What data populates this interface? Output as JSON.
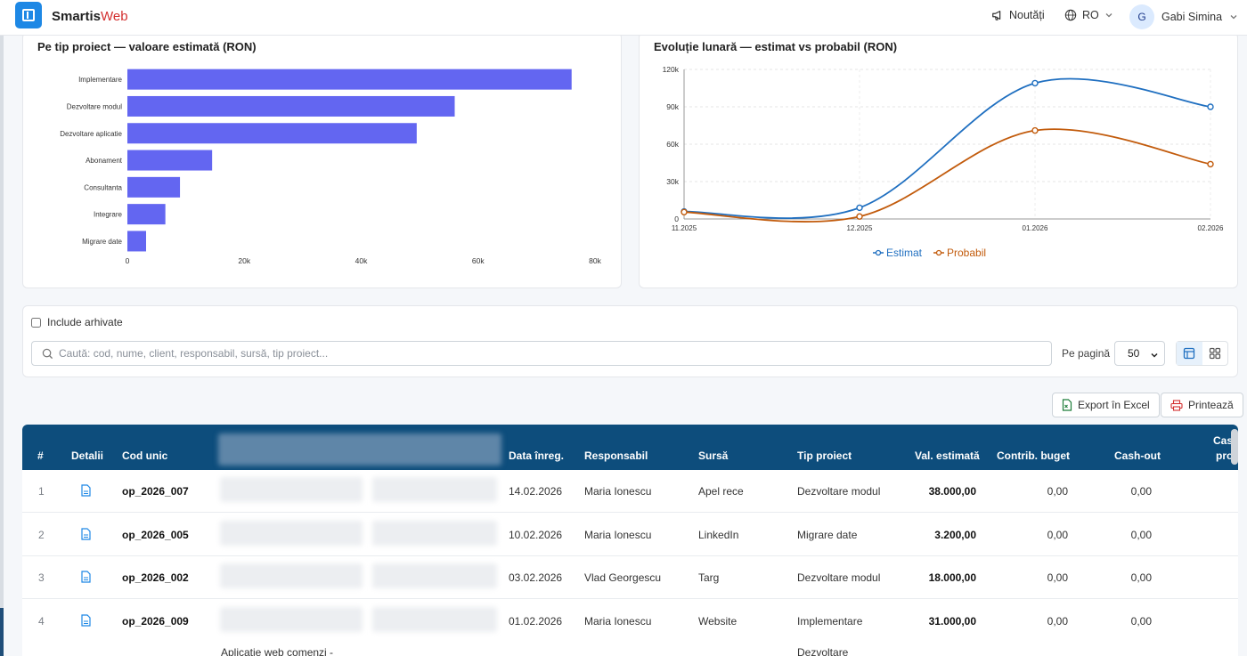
{
  "header": {
    "brand_main": "Smartis",
    "brand_accent": "Web",
    "news": "Noutăți",
    "lang": "RO",
    "user_initial": "G",
    "user_name": "Gabi Simina"
  },
  "bar_chart": {
    "title": "Pe tip proiect — valoare estimată (RON)",
    "chart_data": {
      "type": "bar",
      "orientation": "horizontal",
      "categories": [
        "Implementare",
        "Dezvoltare modul",
        "Dezvoltare aplicatie",
        "Abonament",
        "Consultanta",
        "Integrare",
        "Migrare date"
      ],
      "values": [
        76000,
        56000,
        49500,
        14500,
        9000,
        6500,
        3200
      ],
      "xlim": [
        0,
        80000
      ],
      "ticks": [
        0,
        20000,
        40000,
        60000,
        80000
      ],
      "tick_labels": [
        "0",
        "20k",
        "40k",
        "60k",
        "80k"
      ],
      "color": "#6366f1"
    }
  },
  "line_chart": {
    "title": "Evoluție lunară — estimat vs probabil (RON)",
    "chart_data": {
      "type": "line",
      "categories": [
        "11.2025",
        "12.2025",
        "01.2026",
        "02.2026"
      ],
      "series": [
        {
          "name": "Estimat",
          "values": [
            6000,
            9000,
            109000,
            90000
          ],
          "color": "#1f6fc0"
        },
        {
          "name": "Probabil",
          "values": [
            5500,
            2000,
            71000,
            44000
          ],
          "color": "#c25b0c"
        }
      ],
      "ylim": [
        0,
        120000
      ],
      "yticks": [
        0,
        30000,
        60000,
        90000,
        120000
      ],
      "ytick_labels": [
        "0",
        "30k",
        "60k",
        "90k",
        "120k"
      ],
      "legend": "bottom"
    }
  },
  "filters": {
    "include_archived": "Include arhivate",
    "search_placeholder": "Caută: cod, nume, client, responsabil, sursă, tip proiect...",
    "per_page_label": "Pe pagină",
    "per_page_value": "50"
  },
  "actions": {
    "export": "Export în Excel",
    "print": "Printează"
  },
  "table": {
    "headers": {
      "num": "#",
      "details": "Detalii",
      "code": "Cod unic",
      "date": "Data înreg.",
      "owner": "Responsabil",
      "source": "Sursă",
      "type": "Tip proiect",
      "estimated": "Val. estimată",
      "budget": "Contrib. buget",
      "cashout": "Cash-out",
      "cash_line1": "Cas",
      "cash_line2": "pro"
    },
    "rows": [
      {
        "num": "1",
        "code": "op_2026_007",
        "date": "14.02.2026",
        "owner": "Maria Ionescu",
        "source": "Apel rece",
        "type": "Dezvoltare modul",
        "estimated": "38.000,00",
        "budget": "0,00",
        "cashout": "0,00"
      },
      {
        "num": "2",
        "code": "op_2026_005",
        "date": "10.02.2026",
        "owner": "Maria Ionescu",
        "source": "LinkedIn",
        "type": "Migrare date",
        "estimated": "3.200,00",
        "budget": "0,00",
        "cashout": "0,00"
      },
      {
        "num": "3",
        "code": "op_2026_002",
        "date": "03.02.2026",
        "owner": "Vlad Georgescu",
        "source": "Targ",
        "type": "Dezvoltare modul",
        "estimated": "18.000,00",
        "budget": "0,00",
        "cashout": "0,00"
      },
      {
        "num": "4",
        "code": "op_2026_009",
        "date": "01.02.2026",
        "owner": "Maria Ionescu",
        "source": "Website",
        "type": "Implementare",
        "estimated": "31.000,00",
        "budget": "0,00",
        "cashout": "0,00"
      }
    ],
    "partial_row": {
      "name": "Aplicatie web comenzi -",
      "type": "Dezvoltare"
    }
  }
}
